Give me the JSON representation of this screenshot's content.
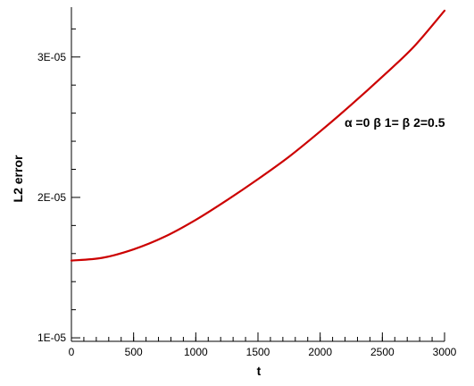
{
  "chart_data": {
    "type": "line",
    "title": "",
    "xlabel": "t",
    "ylabel": "L2 error",
    "xlim": [
      0,
      3000
    ],
    "ylim": [
      9.75e-06,
      3.355e-05
    ],
    "x_ticks": [
      0,
      500,
      1000,
      1500,
      2000,
      2500,
      3000
    ],
    "x_tick_labels": [
      "0",
      "500",
      "1000",
      "1500",
      "2000",
      "2500",
      "3000"
    ],
    "y_ticks": [
      1e-05,
      2e-05,
      3e-05
    ],
    "y_tick_labels": [
      "1E-05",
      "2E-05",
      "3E-05"
    ],
    "y_minor_ticks": [
      1.2e-05,
      1.4e-05,
      1.6e-05,
      1.8e-05,
      2.2e-05,
      2.4e-05,
      2.6e-05,
      2.8e-05,
      3.2e-05
    ],
    "x_minor_step": 100,
    "grid": false,
    "legend": false,
    "series": [
      {
        "color": "#cc0000",
        "x": [
          0,
          250,
          500,
          750,
          1000,
          1250,
          1500,
          1750,
          2000,
          2250,
          2500,
          2750,
          3000
        ],
        "y": [
          1.55e-05,
          1.57e-05,
          1.63e-05,
          1.72e-05,
          1.84e-05,
          1.98e-05,
          2.13e-05,
          2.29e-05,
          2.47e-05,
          2.66e-05,
          2.86e-05,
          3.07e-05,
          3.33e-05
        ]
      }
    ],
    "annotation_parts": [
      "α",
      "=0 ",
      "β",
      "1=",
      "β",
      "2=0.5"
    ]
  }
}
